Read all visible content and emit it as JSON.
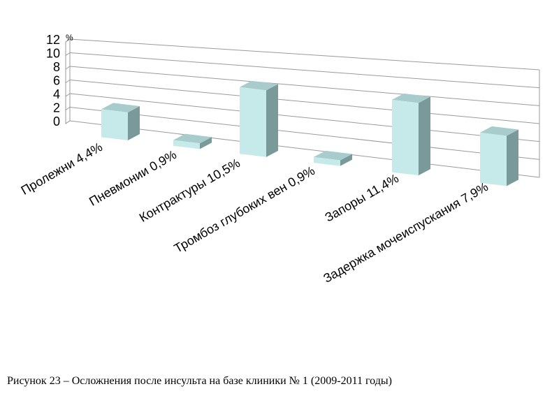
{
  "chart_data": {
    "type": "bar",
    "categories": [
      "Пролежни 4,4%",
      "Пневмонии 0,9%",
      "Контрактуры 10,5%",
      "Тромбоз глубоких вен 0,9%",
      "Запоры 11,4%",
      "Задержка мочеиспускания 7,9%"
    ],
    "values": [
      4.4,
      0.9,
      10.5,
      0.9,
      11.4,
      7.9
    ],
    "title": "",
    "xlabel": "",
    "ylabel": "%",
    "ylim": [
      0,
      12
    ],
    "yticks": [
      "0",
      "2",
      "4",
      "6",
      "8",
      "10",
      "12"
    ],
    "grid": true,
    "legend": "none",
    "style": "3d-perspective",
    "bar_color": "#c6eaea",
    "bar_side_color": "#7a9a9a",
    "bar_top_color": "#a8cccc"
  },
  "caption": "Рисунок 23 – Осложнения после инсульта на базе клиники № 1 (2009-2011 годы)"
}
